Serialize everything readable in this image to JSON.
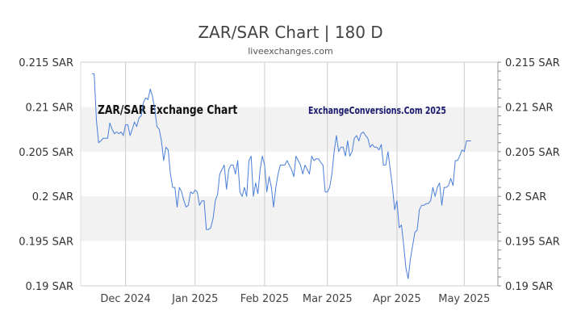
{
  "chart_data": {
    "type": "line",
    "title": "ZAR/SAR Chart | 180 D",
    "subtitle": "liveexchanges.com",
    "inner_title": "ZAR/SAR Exchange Chart",
    "watermark": "ExchangeConversions.Com 2025",
    "ylim": [
      0.19,
      0.215
    ],
    "y_ticks": [
      0.215,
      0.21,
      0.205,
      0.2,
      0.195,
      0.19
    ],
    "y_tick_labels": [
      "0.215 SAR",
      "0.21 SAR",
      "0.205 SAR",
      "0.2 SAR",
      "0.195 SAR",
      "0.19 SAR"
    ],
    "x_ticks": [
      {
        "label": "Dec 2024",
        "day": 20
      },
      {
        "label": "Jan 2025",
        "day": 51
      },
      {
        "label": "Feb 2025",
        "day": 82
      },
      {
        "label": "Mar 2025",
        "day": 110
      },
      {
        "label": "Apr 2025",
        "day": 141
      },
      {
        "label": "May 2025",
        "day": 171
      }
    ],
    "x_range": [
      0,
      186
    ],
    "grid": "vertical lines at month starts; alternating horizontal bands",
    "line_color": "#4a7fd9",
    "series": [
      {
        "values": [
          [
            5,
            0.2137
          ],
          [
            6,
            0.2137
          ],
          [
            7,
            0.2085
          ],
          [
            8,
            0.206
          ],
          [
            9,
            0.2062
          ],
          [
            10,
            0.2065
          ],
          [
            11,
            0.2065
          ],
          [
            12,
            0.2065
          ],
          [
            13,
            0.2082
          ],
          [
            14,
            0.2075
          ],
          [
            15,
            0.207
          ],
          [
            16,
            0.2072
          ],
          [
            17,
            0.207
          ],
          [
            18,
            0.2072
          ],
          [
            19,
            0.2068
          ],
          [
            20,
            0.208
          ],
          [
            21,
            0.208
          ],
          [
            22,
            0.2068
          ],
          [
            23,
            0.2075
          ],
          [
            24,
            0.2083
          ],
          [
            25,
            0.2078
          ],
          [
            26,
            0.2088
          ],
          [
            27,
            0.209
          ],
          [
            28,
            0.2105
          ],
          [
            29,
            0.211
          ],
          [
            30,
            0.2108
          ],
          [
            31,
            0.212
          ],
          [
            32,
            0.2112
          ],
          [
            33,
            0.2098
          ],
          [
            34,
            0.2078
          ],
          [
            35,
            0.2075
          ],
          [
            36,
            0.2062
          ],
          [
            37,
            0.204
          ],
          [
            38,
            0.2055
          ],
          [
            39,
            0.2052
          ],
          [
            40,
            0.2025
          ],
          [
            41,
            0.201
          ],
          [
            42,
            0.201
          ],
          [
            43,
            0.1988
          ],
          [
            44,
            0.201
          ],
          [
            45,
            0.2005
          ],
          [
            46,
            0.1995
          ],
          [
            47,
            0.1988
          ],
          [
            48,
            0.199
          ],
          [
            49,
            0.2005
          ],
          [
            50,
            0.2003
          ],
          [
            51,
            0.2007
          ],
          [
            52,
            0.2005
          ],
          [
            53,
            0.199
          ],
          [
            54,
            0.1995
          ],
          [
            55,
            0.1995
          ],
          [
            56,
            0.1963
          ],
          [
            57,
            0.1963
          ],
          [
            58,
            0.1965
          ],
          [
            59,
            0.1975
          ],
          [
            60,
            0.1995
          ],
          [
            61,
            0.2002
          ],
          [
            62,
            0.2025
          ],
          [
            63,
            0.203
          ],
          [
            64,
            0.2035
          ],
          [
            65,
            0.2008
          ],
          [
            66,
            0.203
          ],
          [
            67,
            0.2035
          ],
          [
            68,
            0.2035
          ],
          [
            69,
            0.2025
          ],
          [
            70,
            0.204
          ],
          [
            71,
            0.2005
          ],
          [
            72,
            0.2
          ],
          [
            73,
            0.201
          ],
          [
            74,
            0.2
          ],
          [
            75,
            0.204
          ],
          [
            76,
            0.2045
          ],
          [
            77,
            0.2
          ],
          [
            78,
            0.2015
          ],
          [
            79,
            0.2003
          ],
          [
            80,
            0.203
          ],
          [
            81,
            0.2045
          ],
          [
            82,
            0.2035
          ],
          [
            83,
            0.2005
          ],
          [
            84,
            0.2022
          ],
          [
            85,
            0.201
          ],
          [
            86,
            0.1988
          ],
          [
            87,
            0.201
          ],
          [
            88,
            0.2025
          ],
          [
            89,
            0.2035
          ],
          [
            90,
            0.2035
          ],
          [
            91,
            0.2035
          ],
          [
            92,
            0.204
          ],
          [
            93,
            0.2035
          ],
          [
            94,
            0.203
          ],
          [
            95,
            0.2022
          ],
          [
            96,
            0.2045
          ],
          [
            97,
            0.204
          ],
          [
            98,
            0.2035
          ],
          [
            99,
            0.2025
          ],
          [
            100,
            0.2035
          ],
          [
            101,
            0.203
          ],
          [
            102,
            0.2025
          ],
          [
            103,
            0.2045
          ],
          [
            104,
            0.204
          ],
          [
            105,
            0.2042
          ],
          [
            106,
            0.2042
          ],
          [
            107,
            0.2038
          ],
          [
            108,
            0.2035
          ],
          [
            109,
            0.2005
          ],
          [
            110,
            0.2005
          ],
          [
            111,
            0.201
          ],
          [
            112,
            0.2025
          ],
          [
            113,
            0.205
          ],
          [
            114,
            0.2068
          ],
          [
            115,
            0.205
          ],
          [
            116,
            0.2055
          ],
          [
            117,
            0.2055
          ],
          [
            118,
            0.2045
          ],
          [
            119,
            0.2062
          ],
          [
            120,
            0.2045
          ],
          [
            121,
            0.205
          ],
          [
            122,
            0.2065
          ],
          [
            123,
            0.2068
          ],
          [
            124,
            0.2062
          ],
          [
            125,
            0.207
          ],
          [
            126,
            0.2072
          ],
          [
            127,
            0.2068
          ],
          [
            128,
            0.2065
          ],
          [
            129,
            0.2055
          ],
          [
            130,
            0.2058
          ],
          [
            131,
            0.2055
          ],
          [
            132,
            0.2055
          ],
          [
            133,
            0.2052
          ],
          [
            134,
            0.2058
          ],
          [
            135,
            0.2035
          ],
          [
            136,
            0.2035
          ],
          [
            137,
            0.205
          ],
          [
            138,
            0.203
          ],
          [
            139,
            0.201
          ],
          [
            140,
            0.1985
          ],
          [
            141,
            0.1995
          ],
          [
            142,
            0.1965
          ],
          [
            143,
            0.1968
          ],
          [
            144,
            0.1945
          ],
          [
            145,
            0.192
          ],
          [
            146,
            0.1908
          ],
          [
            147,
            0.193
          ],
          [
            148,
            0.1945
          ],
          [
            149,
            0.196
          ],
          [
            150,
            0.1962
          ],
          [
            151,
            0.1985
          ],
          [
            152,
            0.199
          ],
          [
            153,
            0.199
          ],
          [
            154,
            0.1992
          ],
          [
            155,
            0.1992
          ],
          [
            156,
            0.1995
          ],
          [
            157,
            0.201
          ],
          [
            158,
            0.2
          ],
          [
            159,
            0.201
          ],
          [
            160,
            0.2015
          ],
          [
            161,
            0.199
          ],
          [
            162,
            0.201
          ],
          [
            163,
            0.201
          ],
          [
            164,
            0.2012
          ],
          [
            165,
            0.202
          ],
          [
            166,
            0.2012
          ],
          [
            167,
            0.204
          ],
          [
            168,
            0.204
          ],
          [
            169,
            0.2045
          ],
          [
            170,
            0.2052
          ],
          [
            171,
            0.205
          ],
          [
            172,
            0.2062
          ],
          [
            173,
            0.2062
          ],
          [
            174,
            0.2062
          ]
        ]
      }
    ]
  }
}
